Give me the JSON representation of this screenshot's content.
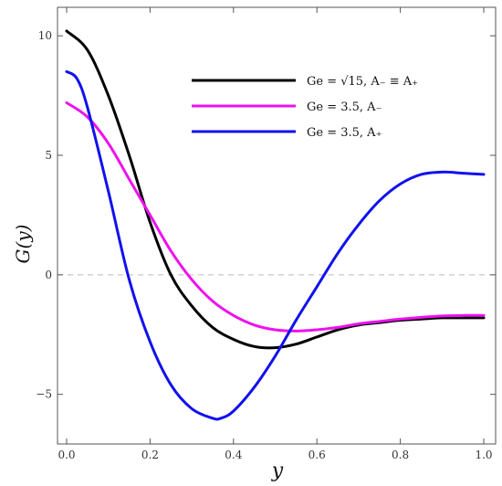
{
  "chart_data": {
    "type": "line",
    "xlabel": "y",
    "ylabel": "G(y)",
    "xlim": [
      0,
      1
    ],
    "ylim": [
      -7,
      11
    ],
    "xticks": [
      0.0,
      0.2,
      0.4,
      0.6,
      0.8,
      1.0
    ],
    "xtick_labels": [
      "0.0",
      "0.2",
      "0.4",
      "0.6",
      "0.8",
      "1.0"
    ],
    "yticks": [
      -5,
      0,
      5,
      10
    ],
    "ytick_labels": [
      "−5",
      "0",
      "5",
      "10"
    ],
    "reference_line": {
      "y": 0,
      "style": "dashed",
      "color": "#bbbbbb"
    },
    "grid": false,
    "legend_position": "top-right",
    "series": [
      {
        "name": "Ge = √15,  A₋ ≡ A₊",
        "color": "#000000",
        "x": [
          0.0,
          0.05,
          0.1,
          0.15,
          0.2,
          0.25,
          0.3,
          0.35,
          0.4,
          0.45,
          0.5,
          0.55,
          0.6,
          0.65,
          0.7,
          0.75,
          0.8,
          0.85,
          0.9,
          0.95,
          1.0
        ],
        "y": [
          10.2,
          9.4,
          7.5,
          5.0,
          2.2,
          0.0,
          -1.3,
          -2.2,
          -2.7,
          -3.0,
          -3.05,
          -2.9,
          -2.6,
          -2.3,
          -2.1,
          -2.0,
          -1.9,
          -1.85,
          -1.8,
          -1.8,
          -1.8
        ]
      },
      {
        "name": "Ge = 3.5,  A₋",
        "color": "#ee11ee",
        "x": [
          0.0,
          0.05,
          0.1,
          0.15,
          0.2,
          0.25,
          0.3,
          0.35,
          0.4,
          0.45,
          0.5,
          0.55,
          0.6,
          0.65,
          0.7,
          0.75,
          0.8,
          0.85,
          0.9,
          0.95,
          1.0
        ],
        "y": [
          7.2,
          6.6,
          5.5,
          4.0,
          2.5,
          1.0,
          -0.2,
          -1.1,
          -1.7,
          -2.1,
          -2.3,
          -2.35,
          -2.3,
          -2.2,
          -2.05,
          -1.95,
          -1.85,
          -1.78,
          -1.72,
          -1.7,
          -1.7
        ]
      },
      {
        "name": "Ge = 3.5,  A₊",
        "color": "#1111ee",
        "x": [
          0.0,
          0.025,
          0.05,
          0.1,
          0.15,
          0.2,
          0.25,
          0.3,
          0.35,
          0.37,
          0.4,
          0.45,
          0.5,
          0.55,
          0.6,
          0.65,
          0.7,
          0.75,
          0.8,
          0.85,
          0.9,
          0.95,
          1.0
        ],
        "y": [
          8.5,
          8.2,
          7.0,
          3.5,
          -0.2,
          -2.8,
          -4.6,
          -5.6,
          -6.0,
          -6.0,
          -5.7,
          -4.7,
          -3.4,
          -1.9,
          -0.5,
          0.9,
          2.1,
          3.1,
          3.8,
          4.2,
          4.3,
          4.25,
          4.2
        ]
      }
    ]
  }
}
